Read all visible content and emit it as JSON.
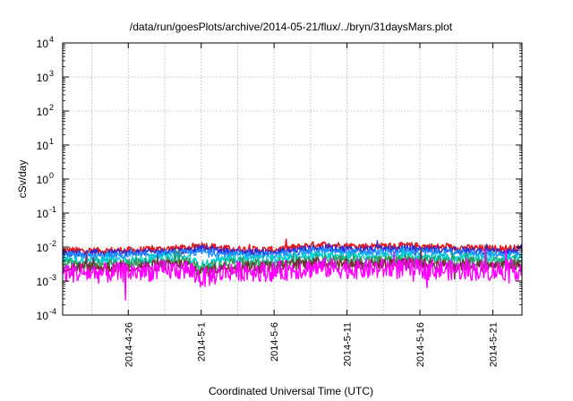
{
  "chart_data": {
    "type": "line",
    "title": "/data/run/goesPlots/archive/2014-05-21/flux/../bryn/31daysMars.plot",
    "xlabel": "Coordinated Universal Time (UTC)",
    "ylabel": "cSv/day",
    "yscale": "log",
    "ylim": [
      0.0001,
      10000
    ],
    "xlim": [
      "2014-04-21T12:00",
      "2014-05-23T00:00"
    ],
    "grid": true,
    "x_ticks": [
      "2014-4-26",
      "2014-5-1",
      "2014-5-6",
      "2014-5-11",
      "2014-5-16",
      "2014-5-21"
    ],
    "y_ticks": [
      {
        "base": "10",
        "exp": "-4"
      },
      {
        "base": "10",
        "exp": "-3"
      },
      {
        "base": "10",
        "exp": "-2"
      },
      {
        "base": "10",
        "exp": "-1"
      },
      {
        "base": "10",
        "exp": "0"
      },
      {
        "base": "10",
        "exp": "1"
      },
      {
        "base": "10",
        "exp": "2"
      },
      {
        "base": "10",
        "exp": "3"
      },
      {
        "base": "10",
        "exp": "4"
      }
    ],
    "x": [
      "2014-04-21",
      "2014-04-24",
      "2014-04-27",
      "2014-04-30",
      "2014-05-01",
      "2014-05-03",
      "2014-05-06",
      "2014-05-09",
      "2014-05-12",
      "2014-05-15",
      "2014-05-18",
      "2014-05-21",
      "2014-05-22"
    ],
    "series": [
      {
        "color": "#e31a1c",
        "values": [
          0.008,
          0.0078,
          0.0082,
          0.0095,
          0.0115,
          0.0088,
          0.0082,
          0.012,
          0.0105,
          0.011,
          0.0098,
          0.009,
          0.0092
        ],
        "noise": 0.1
      },
      {
        "color": "#2b2bdc",
        "values": [
          0.0068,
          0.0066,
          0.007,
          0.008,
          0.009,
          0.0073,
          0.007,
          0.0095,
          0.0085,
          0.009,
          0.0082,
          0.0076,
          0.0078
        ],
        "noise": 0.1
      },
      {
        "color": "#1e90ff",
        "values": [
          0.0056,
          0.0054,
          0.0058,
          0.0066,
          0.0072,
          0.006,
          0.0058,
          0.0078,
          0.007,
          0.0074,
          0.0068,
          0.0062,
          0.0064
        ],
        "noise": 0.1
      },
      {
        "color": "#00ced1",
        "values": [
          0.0042,
          0.004,
          0.0044,
          0.005,
          0.003,
          0.0046,
          0.0044,
          0.0058,
          0.0052,
          0.0056,
          0.005,
          0.0047,
          0.0048
        ],
        "noise": 0.12
      },
      {
        "color": "#2e9e60",
        "values": [
          0.0033,
          0.0031,
          0.0034,
          0.0039,
          0.0023,
          0.0036,
          0.0034,
          0.0045,
          0.004,
          0.0043,
          0.0039,
          0.0036,
          0.0037
        ],
        "noise": 0.14
      },
      {
        "color": "#7b2c3a",
        "values": [
          0.0026,
          0.0025,
          0.0027,
          0.0031,
          0.0018,
          0.0028,
          0.0027,
          0.0035,
          0.0031,
          0.0034,
          0.003,
          0.0028,
          0.0029
        ],
        "noise": 0.16
      },
      {
        "color": "#ff00ff",
        "values": [
          0.0018,
          0.0017,
          0.0019,
          0.0022,
          0.0012,
          0.002,
          0.0019,
          0.0025,
          0.0022,
          0.0024,
          0.0021,
          0.002,
          0.0021
        ],
        "noise": 0.3
      }
    ]
  }
}
